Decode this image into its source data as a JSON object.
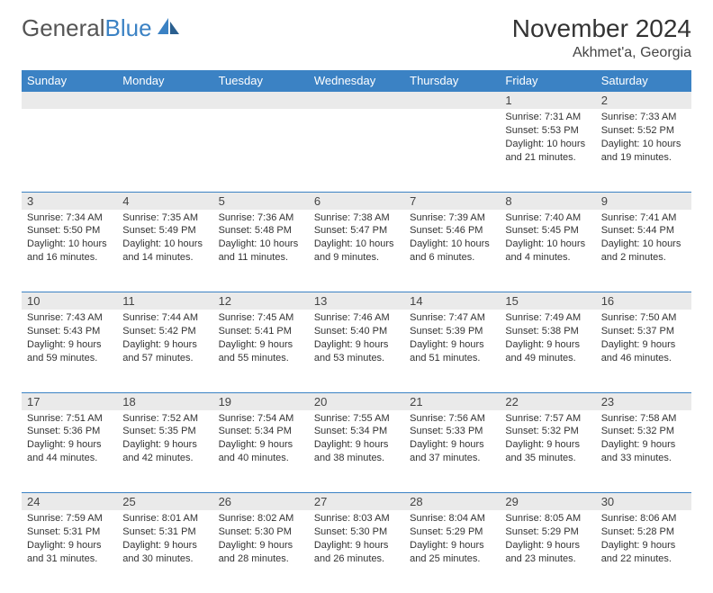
{
  "brand": {
    "part1": "General",
    "part2": "Blue"
  },
  "title": "November 2024",
  "location": "Akhmet'a, Georgia",
  "colors": {
    "header_bg": "#3b82c4",
    "header_text": "#ffffff",
    "daynum_bg": "#eaeaea",
    "border": "#3b82c4",
    "text": "#333333",
    "page_bg": "#ffffff"
  },
  "layout": {
    "columns": 7,
    "rows": 5,
    "first_day_column_index": 5
  },
  "weekdays": [
    "Sunday",
    "Monday",
    "Tuesday",
    "Wednesday",
    "Thursday",
    "Friday",
    "Saturday"
  ],
  "days": [
    {
      "n": 1,
      "sunrise": "7:31 AM",
      "sunset": "5:53 PM",
      "daylight": "10 hours and 21 minutes."
    },
    {
      "n": 2,
      "sunrise": "7:33 AM",
      "sunset": "5:52 PM",
      "daylight": "10 hours and 19 minutes."
    },
    {
      "n": 3,
      "sunrise": "7:34 AM",
      "sunset": "5:50 PM",
      "daylight": "10 hours and 16 minutes."
    },
    {
      "n": 4,
      "sunrise": "7:35 AM",
      "sunset": "5:49 PM",
      "daylight": "10 hours and 14 minutes."
    },
    {
      "n": 5,
      "sunrise": "7:36 AM",
      "sunset": "5:48 PM",
      "daylight": "10 hours and 11 minutes."
    },
    {
      "n": 6,
      "sunrise": "7:38 AM",
      "sunset": "5:47 PM",
      "daylight": "10 hours and 9 minutes."
    },
    {
      "n": 7,
      "sunrise": "7:39 AM",
      "sunset": "5:46 PM",
      "daylight": "10 hours and 6 minutes."
    },
    {
      "n": 8,
      "sunrise": "7:40 AM",
      "sunset": "5:45 PM",
      "daylight": "10 hours and 4 minutes."
    },
    {
      "n": 9,
      "sunrise": "7:41 AM",
      "sunset": "5:44 PM",
      "daylight": "10 hours and 2 minutes."
    },
    {
      "n": 10,
      "sunrise": "7:43 AM",
      "sunset": "5:43 PM",
      "daylight": "9 hours and 59 minutes."
    },
    {
      "n": 11,
      "sunrise": "7:44 AM",
      "sunset": "5:42 PM",
      "daylight": "9 hours and 57 minutes."
    },
    {
      "n": 12,
      "sunrise": "7:45 AM",
      "sunset": "5:41 PM",
      "daylight": "9 hours and 55 minutes."
    },
    {
      "n": 13,
      "sunrise": "7:46 AM",
      "sunset": "5:40 PM",
      "daylight": "9 hours and 53 minutes."
    },
    {
      "n": 14,
      "sunrise": "7:47 AM",
      "sunset": "5:39 PM",
      "daylight": "9 hours and 51 minutes."
    },
    {
      "n": 15,
      "sunrise": "7:49 AM",
      "sunset": "5:38 PM",
      "daylight": "9 hours and 49 minutes."
    },
    {
      "n": 16,
      "sunrise": "7:50 AM",
      "sunset": "5:37 PM",
      "daylight": "9 hours and 46 minutes."
    },
    {
      "n": 17,
      "sunrise": "7:51 AM",
      "sunset": "5:36 PM",
      "daylight": "9 hours and 44 minutes."
    },
    {
      "n": 18,
      "sunrise": "7:52 AM",
      "sunset": "5:35 PM",
      "daylight": "9 hours and 42 minutes."
    },
    {
      "n": 19,
      "sunrise": "7:54 AM",
      "sunset": "5:34 PM",
      "daylight": "9 hours and 40 minutes."
    },
    {
      "n": 20,
      "sunrise": "7:55 AM",
      "sunset": "5:34 PM",
      "daylight": "9 hours and 38 minutes."
    },
    {
      "n": 21,
      "sunrise": "7:56 AM",
      "sunset": "5:33 PM",
      "daylight": "9 hours and 37 minutes."
    },
    {
      "n": 22,
      "sunrise": "7:57 AM",
      "sunset": "5:32 PM",
      "daylight": "9 hours and 35 minutes."
    },
    {
      "n": 23,
      "sunrise": "7:58 AM",
      "sunset": "5:32 PM",
      "daylight": "9 hours and 33 minutes."
    },
    {
      "n": 24,
      "sunrise": "7:59 AM",
      "sunset": "5:31 PM",
      "daylight": "9 hours and 31 minutes."
    },
    {
      "n": 25,
      "sunrise": "8:01 AM",
      "sunset": "5:31 PM",
      "daylight": "9 hours and 30 minutes."
    },
    {
      "n": 26,
      "sunrise": "8:02 AM",
      "sunset": "5:30 PM",
      "daylight": "9 hours and 28 minutes."
    },
    {
      "n": 27,
      "sunrise": "8:03 AM",
      "sunset": "5:30 PM",
      "daylight": "9 hours and 26 minutes."
    },
    {
      "n": 28,
      "sunrise": "8:04 AM",
      "sunset": "5:29 PM",
      "daylight": "9 hours and 25 minutes."
    },
    {
      "n": 29,
      "sunrise": "8:05 AM",
      "sunset": "5:29 PM",
      "daylight": "9 hours and 23 minutes."
    },
    {
      "n": 30,
      "sunrise": "8:06 AM",
      "sunset": "5:28 PM",
      "daylight": "9 hours and 22 minutes."
    }
  ],
  "labels": {
    "sunrise": "Sunrise:",
    "sunset": "Sunset:",
    "daylight": "Daylight:"
  }
}
